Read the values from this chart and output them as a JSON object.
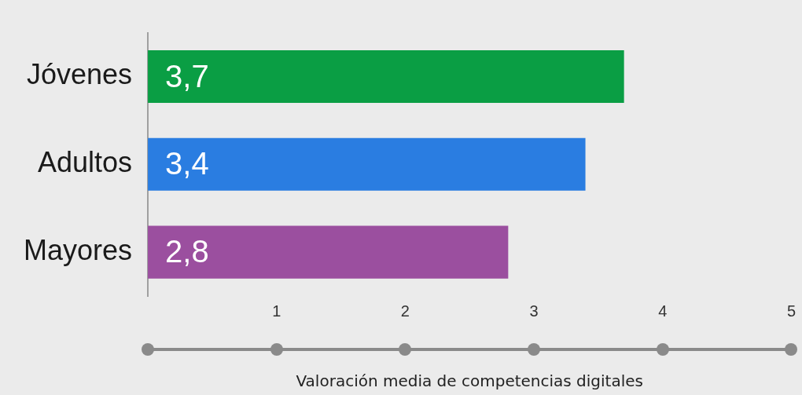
{
  "chart_data": {
    "type": "bar",
    "orientation": "horizontal",
    "categories": [
      "Jóvenes",
      "Adultos",
      "Mayores"
    ],
    "values": [
      3.7,
      3.4,
      2.8
    ],
    "colors": [
      "#0a9e44",
      "#2a7de1",
      "#9b4f9f"
    ],
    "value_labels": [
      "3,7",
      "3,4",
      "2,8"
    ],
    "xlim": [
      0,
      5
    ],
    "xticks": [
      1,
      2,
      3,
      4,
      5
    ],
    "xlabel": "Valoración media de competencias digitales"
  }
}
